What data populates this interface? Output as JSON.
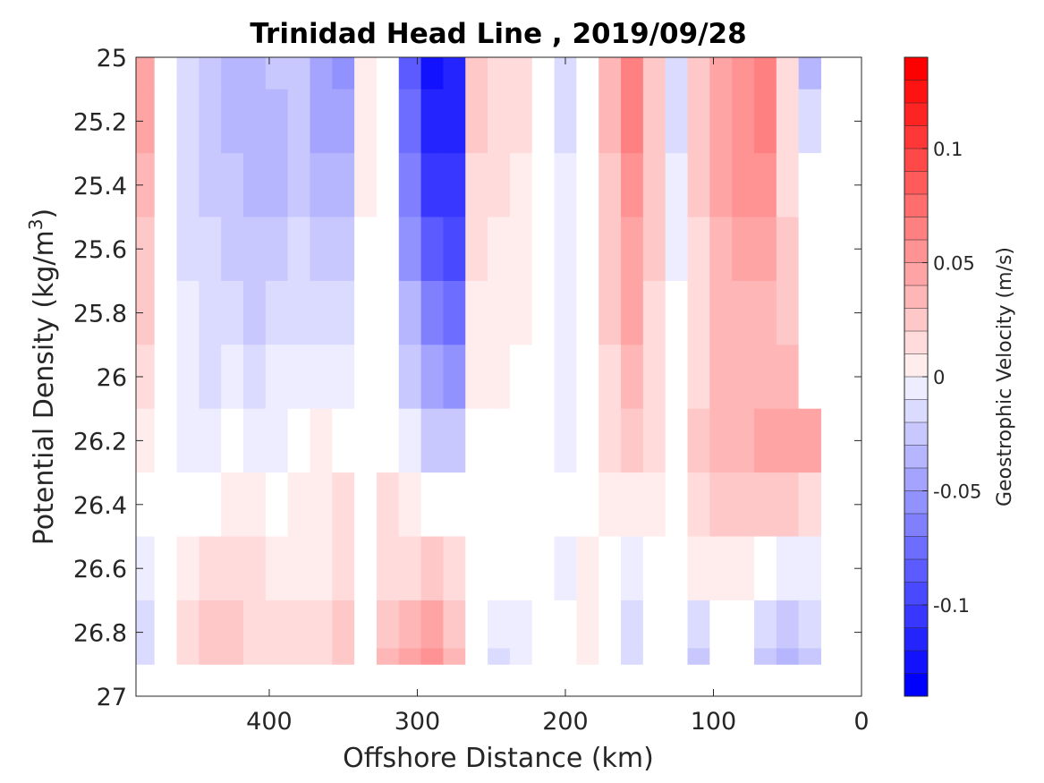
{
  "chart_data": {
    "type": "heatmap",
    "title": "Trinidad Head Line , 2019/09/28",
    "xlabel": "Offshore Distance (km)",
    "ylabel": "Potential Density (kg/m",
    "ylabel_sup": "3",
    "ylabel_close": ")",
    "xlim": [
      490,
      0
    ],
    "ylim": [
      25,
      27
    ],
    "x_reversed": true,
    "y_reversed": true,
    "x_ticks": [
      400,
      300,
      200,
      100,
      0
    ],
    "x_tick_labels": [
      "400",
      "300",
      "200",
      "100",
      "0"
    ],
    "y_ticks": [
      25,
      25.2,
      25.4,
      25.6,
      25.8,
      26,
      26.2,
      26.4,
      26.6,
      26.8,
      27
    ],
    "y_tick_labels": [
      "25",
      "25.2",
      "25.4",
      "25.6",
      "25.8",
      "26",
      "26.2",
      "26.4",
      "26.6",
      "26.8",
      "27"
    ],
    "colorbar": {
      "label": "Geostrophic Velocity (m/s)",
      "range": [
        -0.14,
        0.14
      ],
      "levels": 28,
      "ticks": [
        0.1,
        0.05,
        0,
        -0.05,
        -0.1
      ],
      "tick_labels": [
        "0.1",
        "0.05",
        "0",
        "-0.05",
        "-0.1"
      ],
      "colormap": "blue-white-red",
      "color_negative": "#0000ff",
      "color_zero": "#ffffff",
      "color_positive": "#ff0000"
    },
    "x_grid": [
      485,
      470,
      455,
      440,
      425,
      410,
      395,
      380,
      365,
      350,
      335,
      320,
      305,
      290,
      275,
      260,
      245,
      230,
      215,
      200,
      185,
      170,
      155,
      140,
      125,
      110,
      95,
      80,
      65,
      50,
      35
    ],
    "y_grid": [
      25.0,
      25.2,
      25.4,
      25.6,
      25.8,
      26.0,
      26.2,
      26.4,
      26.6,
      26.8,
      26.9
    ],
    "velocity": [
      [
        0.05,
        0.0,
        -0.02,
        -0.03,
        -0.04,
        -0.04,
        -0.03,
        -0.03,
        -0.05,
        -0.06,
        0.01,
        0.0,
        -0.09,
        -0.13,
        -0.12,
        0.03,
        0.02,
        0.02,
        0.0,
        -0.02,
        0.0,
        0.04,
        0.07,
        0.03,
        -0.02,
        0.03,
        0.05,
        0.06,
        0.07,
        0.02,
        -0.04
      ],
      [
        0.05,
        0.0,
        -0.02,
        -0.03,
        -0.04,
        -0.04,
        -0.04,
        -0.03,
        -0.05,
        -0.05,
        0.01,
        0.0,
        -0.08,
        -0.12,
        -0.12,
        0.03,
        0.02,
        0.02,
        0.0,
        -0.02,
        0.0,
        0.04,
        0.07,
        0.03,
        -0.02,
        0.03,
        0.05,
        0.06,
        0.07,
        0.02,
        -0.02
      ],
      [
        0.04,
        0.0,
        -0.02,
        -0.03,
        -0.03,
        -0.04,
        -0.04,
        -0.03,
        -0.04,
        -0.04,
        0.01,
        0.0,
        -0.07,
        -0.11,
        -0.11,
        0.02,
        0.02,
        0.01,
        0.0,
        -0.01,
        0.0,
        0.03,
        0.06,
        0.03,
        -0.01,
        0.03,
        0.05,
        0.06,
        0.06,
        0.02,
        0.0
      ],
      [
        0.03,
        0.0,
        -0.02,
        -0.02,
        -0.03,
        -0.03,
        -0.03,
        -0.02,
        -0.03,
        -0.03,
        0.0,
        0.0,
        -0.06,
        -0.09,
        -0.1,
        0.02,
        0.01,
        0.01,
        0.0,
        -0.01,
        0.0,
        0.03,
        0.05,
        0.03,
        -0.01,
        0.02,
        0.04,
        0.05,
        0.05,
        0.03,
        0.0
      ],
      [
        0.03,
        0.0,
        -0.01,
        -0.02,
        -0.02,
        -0.03,
        -0.02,
        -0.02,
        -0.02,
        -0.02,
        0.0,
        0.0,
        -0.04,
        -0.07,
        -0.08,
        0.01,
        0.01,
        0.01,
        0.0,
        -0.01,
        0.0,
        0.03,
        0.05,
        0.02,
        0.0,
        0.02,
        0.04,
        0.04,
        0.04,
        0.03,
        0.0
      ],
      [
        0.02,
        0.0,
        -0.01,
        -0.02,
        -0.01,
        -0.02,
        -0.01,
        -0.01,
        -0.01,
        -0.01,
        0.0,
        0.0,
        -0.03,
        -0.05,
        -0.06,
        0.01,
        0.01,
        0.0,
        0.0,
        -0.01,
        0.0,
        0.02,
        0.04,
        0.02,
        0.0,
        0.02,
        0.04,
        0.04,
        0.04,
        0.04,
        0.0
      ],
      [
        0.01,
        0.0,
        -0.01,
        -0.01,
        0.0,
        -0.01,
        -0.01,
        0.0,
        0.01,
        0.0,
        0.0,
        0.0,
        -0.01,
        -0.03,
        -0.03,
        0.0,
        0.0,
        0.0,
        0.0,
        -0.01,
        0.0,
        0.02,
        0.03,
        0.02,
        0.0,
        0.03,
        0.04,
        0.04,
        0.05,
        0.05,
        0.05
      ],
      [
        0.0,
        0.0,
        0.0,
        0.0,
        0.01,
        0.01,
        0.0,
        0.01,
        0.01,
        0.02,
        0.0,
        0.02,
        0.01,
        0.0,
        0.0,
        0.0,
        0.0,
        0.0,
        0.0,
        0.0,
        0.0,
        0.01,
        0.01,
        0.01,
        0.0,
        0.02,
        0.03,
        0.03,
        0.03,
        0.03,
        0.02
      ],
      [
        -0.01,
        0.0,
        0.01,
        0.02,
        0.02,
        0.02,
        0.01,
        0.01,
        0.01,
        0.02,
        0.0,
        0.02,
        0.02,
        0.03,
        0.02,
        0.0,
        0.0,
        0.0,
        0.0,
        -0.01,
        0.01,
        0.0,
        -0.01,
        0.0,
        0.0,
        0.01,
        0.01,
        0.01,
        0.0,
        -0.01,
        -0.01
      ],
      [
        -0.02,
        0.0,
        0.02,
        0.03,
        0.03,
        0.02,
        0.02,
        0.02,
        0.02,
        0.03,
        0.0,
        0.03,
        0.04,
        0.05,
        0.03,
        0.0,
        -0.01,
        -0.01,
        0.0,
        0.0,
        0.01,
        0.0,
        -0.02,
        0.0,
        0.0,
        -0.02,
        0.0,
        0.0,
        -0.02,
        -0.03,
        -0.02
      ],
      [
        -0.02,
        0.0,
        0.02,
        0.03,
        0.03,
        0.02,
        0.02,
        0.02,
        0.02,
        0.03,
        0.0,
        0.04,
        0.05,
        0.06,
        0.04,
        0.0,
        -0.02,
        -0.01,
        0.0,
        0.0,
        0.01,
        0.0,
        -0.02,
        0.0,
        0.0,
        -0.03,
        0.0,
        0.0,
        -0.03,
        -0.04,
        -0.03
      ]
    ]
  }
}
